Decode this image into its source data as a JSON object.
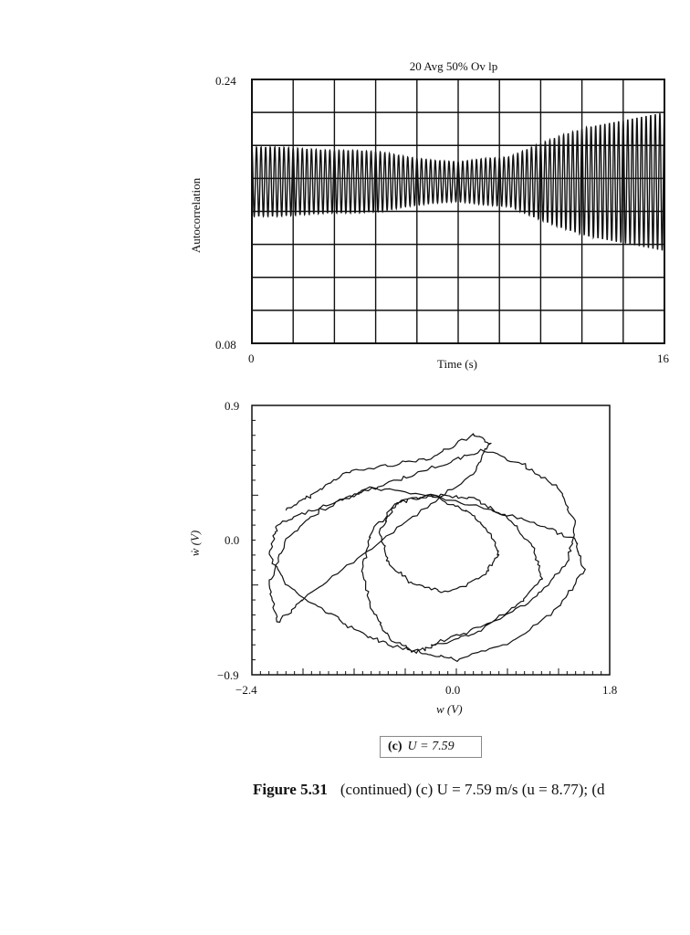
{
  "chart_data": [
    {
      "type": "line",
      "title": "20 Avg 50% Ov lp",
      "xlabel": "Time (s)",
      "ylabel": "Autocorrelation",
      "xlim": [
        0,
        16
      ],
      "ylim": [
        0.08,
        0.24
      ],
      "x_tick_labels": [
        "0",
        "16"
      ],
      "y_tick_labels": [
        "0.24",
        "0.08"
      ],
      "grid": true,
      "series": [
        {
          "values_description_free": true,
          "x": [
            0,
            1,
            2,
            3,
            4,
            5,
            6,
            7,
            8,
            9,
            10,
            11,
            12,
            13,
            14,
            15,
            16
          ],
          "center": [
            0.178,
            0.178,
            0.178,
            0.178,
            0.178,
            0.178,
            0.178,
            0.178,
            0.178,
            0.178,
            0.178,
            0.178,
            0.178,
            0.178,
            0.178,
            0.178,
            0.178
          ],
          "amplitude": [
            0.021,
            0.021,
            0.02,
            0.019,
            0.019,
            0.018,
            0.015,
            0.013,
            0.012,
            0.014,
            0.015,
            0.022,
            0.028,
            0.033,
            0.036,
            0.039,
            0.042
          ],
          "cycles": 90
        }
      ]
    },
    {
      "type": "line",
      "xlabel": "w (V)",
      "ylabel": "ẇ (V)",
      "xlim": [
        -2.4,
        1.8
      ],
      "ylim": [
        -0.9,
        0.9
      ],
      "x_tick_labels": [
        "−2.4",
        "0.0",
        "1.8"
      ],
      "y_tick_labels": [
        "0.9",
        "0.0",
        "−0.9"
      ],
      "grid": false,
      "series": [
        {
          "x": [
            -2.0,
            -1.7,
            -1.3,
            -0.8,
            -0.3,
            0.2,
            0.4,
            0.2,
            -0.4,
            -1.1,
            -1.8,
            -2.1,
            -2.2,
            -2.0,
            -1.6,
            -1.0,
            -0.3,
            0.4,
            1.0,
            1.4,
            1.5,
            1.2,
            0.6,
            0.0,
            -0.4,
            -0.8,
            -1.2,
            -1.6,
            -2.0,
            -2.2,
            -2.1,
            -1.7,
            -1.2,
            -0.7,
            -0.2,
            0.3,
            0.8,
            1.2,
            1.4,
            1.3,
            0.9,
            0.3,
            -0.2,
            -0.5,
            -0.8,
            -1.0,
            -1.1,
            -1.0,
            -0.7,
            -0.3,
            0.1,
            0.4,
            0.5,
            0.3,
            -0.1,
            -0.5,
            -0.8,
            -0.9,
            -0.7,
            -0.3,
            0.2,
            0.6,
            0.9,
            1.0,
            0.7,
            0.2,
            -0.3
          ],
          "y": [
            0.2,
            0.3,
            0.45,
            0.5,
            0.55,
            0.7,
            0.65,
            0.45,
            0.2,
            -0.1,
            -0.4,
            -0.55,
            -0.3,
            0.0,
            0.2,
            0.35,
            0.3,
            0.2,
            0.1,
            0.0,
            -0.2,
            -0.45,
            -0.7,
            -0.8,
            -0.75,
            -0.7,
            -0.6,
            -0.45,
            -0.3,
            -0.1,
            0.1,
            0.2,
            0.3,
            0.4,
            0.5,
            0.6,
            0.5,
            0.35,
            0.1,
            -0.15,
            -0.4,
            -0.6,
            -0.7,
            -0.75,
            -0.65,
            -0.45,
            -0.2,
            0.05,
            0.25,
            0.3,
            0.2,
            0.05,
            -0.1,
            -0.25,
            -0.35,
            -0.3,
            -0.15,
            0.05,
            0.25,
            0.3,
            0.28,
            0.15,
            -0.05,
            -0.25,
            -0.45,
            -0.6,
            -0.7
          ]
        }
      ]
    }
  ],
  "tag": {
    "letter": "(c)",
    "expr": "U = 7.59"
  },
  "caption": {
    "figure": "Figure 5.31",
    "text": "(continued) (c) U = 7.59 m/s (u = 8.77); (d"
  }
}
